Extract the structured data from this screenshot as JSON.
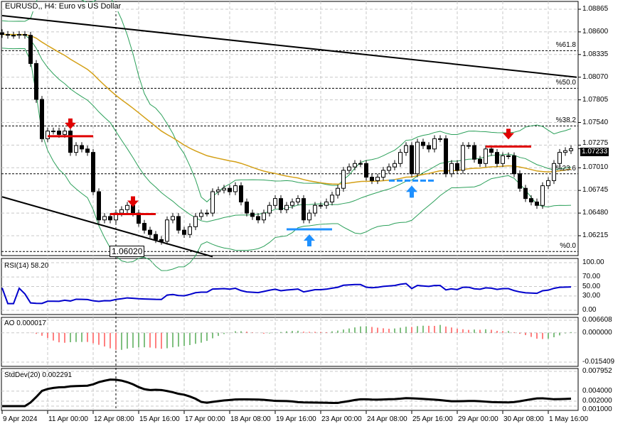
{
  "window": {
    "title": "EURUSD,, H4:  Euro vs US Dollar"
  },
  "colors": {
    "bull": "#000000",
    "bear": "#000000",
    "bands": "#2ca05a",
    "ma": "#d4a017",
    "rsi": "#0000cc",
    "ao_up": "#008000",
    "ao_down": "#ff0000",
    "sell_marker": "#e00000",
    "buy_marker": "#1e90ff"
  },
  "chart_data": [
    {
      "type": "candlestick",
      "symbol": "EURUSD",
      "timeframe": "H4",
      "ylim": [
        1.0596,
        1.0893
      ],
      "price_ticks": [
        "1.08865",
        "1.08600",
        "1.08335",
        "1.08070",
        "1.07805",
        "1.07540",
        "1.07275",
        "1.07010",
        "1.06745",
        "1.06480",
        "1.06215"
      ],
      "current_price": "1.07233",
      "low_label": "1.06020",
      "fib_levels": [
        {
          "label": "%61.8",
          "price": 1.0838
        },
        {
          "label": "%50.0",
          "price": 1.0794
        },
        {
          "label": "%38.2",
          "price": 1.075
        },
        {
          "label": "%23.6",
          "price": 1.0694
        },
        {
          "label": "%0.0",
          "price": 1.0603
        }
      ],
      "x_ticks": [
        "9 Apr 2024",
        "11 Apr 00:00",
        "12 Apr 08:00",
        "15 Apr 16:00",
        "17 Apr 00:00",
        "18 Apr 08:00",
        "19 Apr 16:00",
        "23 Apr 00:00",
        "24 Apr 08:00",
        "25 Apr 16:00",
        "29 Apr 00:00",
        "30 Apr 08:00",
        "1 May 16:00"
      ],
      "closes": [
        1.0857,
        1.0856,
        1.0856,
        1.0857,
        1.0856,
        1.0823,
        1.0781,
        1.0735,
        1.0744,
        1.0744,
        1.074,
        1.0744,
        1.0719,
        1.0727,
        1.0723,
        1.0719,
        1.0673,
        1.064,
        1.0644,
        1.064,
        1.0648,
        1.0652,
        1.0657,
        1.0648,
        1.0636,
        1.0628,
        1.0623,
        1.0617,
        1.0615,
        1.064,
        1.0644,
        1.0628,
        1.0623,
        1.0632,
        1.0644,
        1.0648,
        1.0648,
        1.0673,
        1.0675,
        1.0677,
        1.0673,
        1.068,
        1.0661,
        1.0648,
        1.0644,
        1.064,
        1.0648,
        1.0657,
        1.0665,
        1.0652,
        1.0657,
        1.0661,
        1.0665,
        1.064,
        1.0648,
        1.0657,
        1.0657,
        1.0661,
        1.0669,
        1.0677,
        1.0698,
        1.0702,
        1.0706,
        1.0706,
        1.069,
        1.0686,
        1.069,
        1.0698,
        1.0702,
        1.0706,
        1.0719,
        1.0727,
        1.0694,
        1.0731,
        1.0727,
        1.0723,
        1.0735,
        1.0735,
        1.0694,
        1.0706,
        1.0698,
        1.0727,
        1.0727,
        1.0711,
        1.0706,
        1.0723,
        1.0719,
        1.0706,
        1.0715,
        1.0715,
        1.0694,
        1.0677,
        1.0665,
        1.0661,
        1.0657,
        1.068,
        1.0686,
        1.0706,
        1.0719,
        1.0721,
        1.07233
      ],
      "sell_signals": [
        {
          "bar": 12,
          "price": 1.0752
        },
        {
          "bar": 23,
          "price": 1.0661
        },
        {
          "bar": 89,
          "price": 1.074
        }
      ],
      "buy_signals": [
        {
          "bar": 54,
          "price": 1.0624
        },
        {
          "bar": 72,
          "price": 1.0681
        }
      ],
      "trendlines": [
        {
          "from": {
            "bar": 0,
            "price": 1.0879
          },
          "to": {
            "bar": 101,
            "price": 1.0807
          }
        },
        {
          "from": {
            "bar": 0,
            "price": 1.0667
          },
          "to": {
            "bar": 37,
            "price": 1.0597
          }
        }
      ]
    },
    {
      "type": "line",
      "name": "RSI(14)",
      "value_label": "RSI(14) 58.20",
      "ylim": [
        0,
        100
      ],
      "ticks": [
        "100.00",
        "70.00",
        "50.00",
        "30.00",
        "0.00"
      ]
    },
    {
      "type": "bar",
      "name": "AO",
      "value_label": "AO 0.000017",
      "ylim": [
        -0.015409,
        0.006608
      ],
      "ticks": [
        "0.006608",
        "0.000000",
        "-0.015409"
      ]
    },
    {
      "type": "line",
      "name": "StdDev(20)",
      "value_label": "StdDev(20) 0.002291",
      "ylim": [
        0.001,
        0.007952
      ],
      "ticks": [
        "0.007952",
        "0.004000",
        "0.002000",
        "0.001000"
      ]
    }
  ]
}
